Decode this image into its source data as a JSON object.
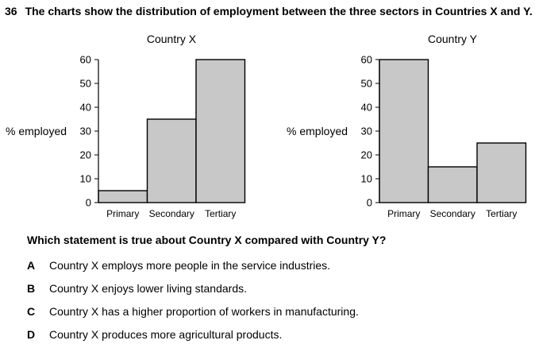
{
  "question": {
    "number": "36",
    "text": "The charts show the distribution of employment between the three sectors in Countries X and Y.",
    "prompt": "Which statement is true about Country X compared with Country Y?",
    "options": [
      {
        "letter": "A",
        "text": "Country X employs more people in the service industries."
      },
      {
        "letter": "B",
        "text": "Country X enjoys lower living standards."
      },
      {
        "letter": "C",
        "text": "Country X has a higher proportion of workers in manufacturing."
      },
      {
        "letter": "D",
        "text": "Country X produces more agricultural products."
      }
    ]
  },
  "colors": {
    "bar_fill": "#c8c8c8",
    "bar_stroke": "#000000"
  },
  "chart_data": [
    {
      "type": "bar",
      "title": "Country X",
      "ylabel": "% employed",
      "xlabel": "",
      "categories": [
        "Primary",
        "Secondary",
        "Tertiary"
      ],
      "values": [
        5,
        35,
        60
      ],
      "ylim": [
        0,
        60
      ],
      "yticks": [
        "0",
        "10",
        "20",
        "30",
        "40",
        "50",
        "60"
      ],
      "grid": false
    },
    {
      "type": "bar",
      "title": "Country Y",
      "ylabel": "% employed",
      "xlabel": "",
      "categories": [
        "Primary",
        "Secondary",
        "Tertiary"
      ],
      "values": [
        60,
        15,
        25
      ],
      "ylim": [
        0,
        60
      ],
      "yticks": [
        "0",
        "10",
        "20",
        "30",
        "40",
        "50",
        "60"
      ],
      "grid": false
    }
  ]
}
